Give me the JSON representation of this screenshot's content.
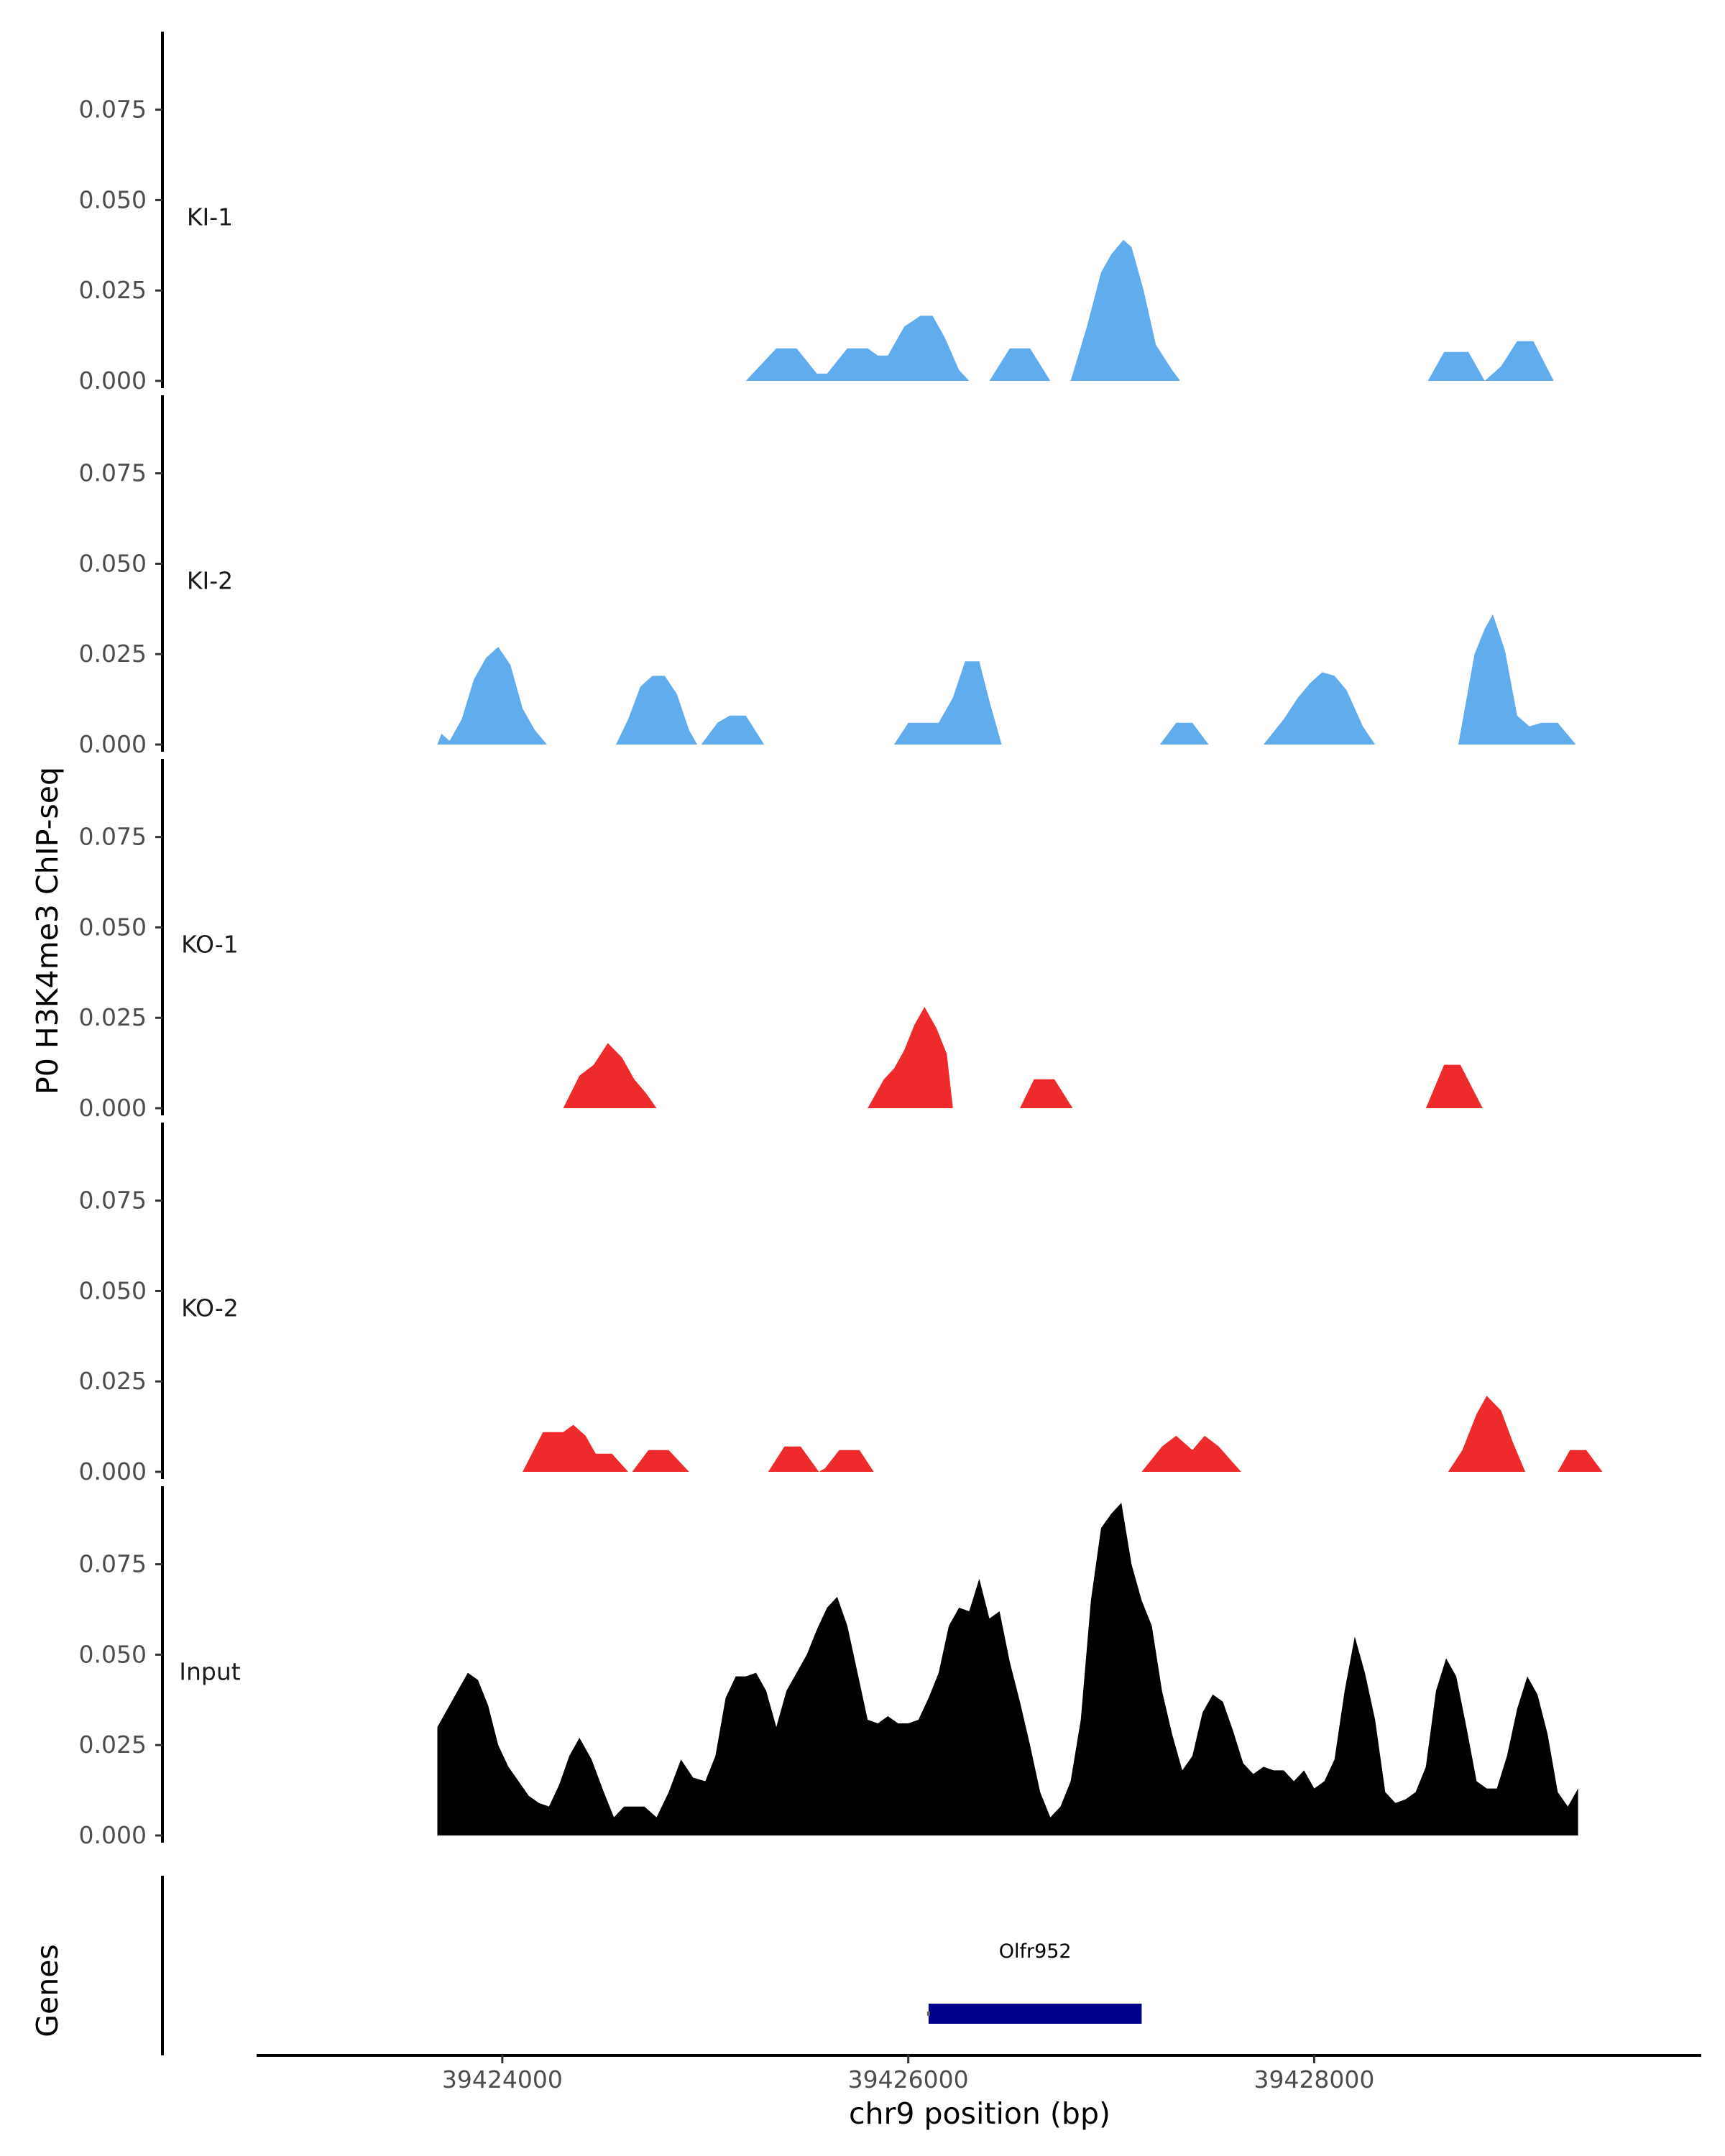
{
  "chart_data": {
    "type": "area",
    "ylabel": "P0 H3K4me3 ChIP-seq",
    "xlabel": "chr9 position (bp)",
    "genes_label": "Genes",
    "xlim": [
      39422800,
      39429900
    ],
    "ylim": [
      0,
      0.095
    ],
    "x_ticks": [
      39424000,
      39426000,
      39428000
    ],
    "x_tick_labels": [
      "39424000",
      "39426000",
      "39428000"
    ],
    "y_ticks": [
      0,
      0.025,
      0.05,
      0.075
    ],
    "y_tick_labels": [
      "0.000",
      "0.025",
      "0.050",
      "0.075"
    ],
    "tracks": [
      {
        "name": "KI-1",
        "color": "#61acec",
        "points": [
          [
            39425200,
            0
          ],
          [
            39425350,
            0.009
          ],
          [
            39425450,
            0.009
          ],
          [
            39425550,
            0.002
          ],
          [
            39425600,
            0.002
          ],
          [
            39425700,
            0.009
          ],
          [
            39425800,
            0.009
          ],
          [
            39425850,
            0.007
          ],
          [
            39425900,
            0.007
          ],
          [
            39425980,
            0.015
          ],
          [
            39426060,
            0.018
          ],
          [
            39426120,
            0.018
          ],
          [
            39426180,
            0.012
          ],
          [
            39426250,
            0.003
          ],
          [
            39426300,
            0
          ],
          [
            39426400,
            0
          ],
          [
            39426500,
            0.009
          ],
          [
            39426600,
            0.009
          ],
          [
            39426700,
            0
          ],
          [
            39426800,
            0
          ],
          [
            39426880,
            0.015
          ],
          [
            39426950,
            0.03
          ],
          [
            39427000,
            0.035
          ],
          [
            39427060,
            0.039
          ],
          [
            39427100,
            0.037
          ],
          [
            39427160,
            0.025
          ],
          [
            39427220,
            0.01
          ],
          [
            39427300,
            0.003
          ],
          [
            39427340,
            0
          ],
          [
            39428560,
            0
          ],
          [
            39428640,
            0.008
          ],
          [
            39428760,
            0.008
          ],
          [
            39428840,
            0
          ],
          [
            39428920,
            0.004
          ],
          [
            39429000,
            0.011
          ],
          [
            39429080,
            0.011
          ],
          [
            39429180,
            0
          ],
          [
            39429250,
            0
          ]
        ]
      },
      {
        "name": "KI-2",
        "color": "#61acec",
        "points": [
          [
            39423680,
            0
          ],
          [
            39423700,
            0.003
          ],
          [
            39423740,
            0.001
          ],
          [
            39423800,
            0.007
          ],
          [
            39423860,
            0.018
          ],
          [
            39423920,
            0.024
          ],
          [
            39423980,
            0.027
          ],
          [
            39424040,
            0.022
          ],
          [
            39424100,
            0.01
          ],
          [
            39424160,
            0.004
          ],
          [
            39424220,
            0
          ],
          [
            39424560,
            0
          ],
          [
            39424620,
            0.007
          ],
          [
            39424680,
            0.016
          ],
          [
            39424740,
            0.019
          ],
          [
            39424800,
            0.019
          ],
          [
            39424860,
            0.014
          ],
          [
            39424920,
            0.004
          ],
          [
            39424960,
            0
          ],
          [
            39424980,
            0
          ],
          [
            39425060,
            0.006
          ],
          [
            39425120,
            0.008
          ],
          [
            39425200,
            0.008
          ],
          [
            39425290,
            0
          ],
          [
            39425930,
            0
          ],
          [
            39426000,
            0.006
          ],
          [
            39426150,
            0.006
          ],
          [
            39426220,
            0.013
          ],
          [
            39426280,
            0.023
          ],
          [
            39426350,
            0.023
          ],
          [
            39426400,
            0.012
          ],
          [
            39426460,
            0
          ],
          [
            39427240,
            0
          ],
          [
            39427320,
            0.006
          ],
          [
            39427400,
            0.006
          ],
          [
            39427480,
            0
          ],
          [
            39427750,
            0
          ],
          [
            39427850,
            0.007
          ],
          [
            39427920,
            0.013
          ],
          [
            39427980,
            0.017
          ],
          [
            39428040,
            0.02
          ],
          [
            39428100,
            0.019
          ],
          [
            39428160,
            0.015
          ],
          [
            39428240,
            0.005
          ],
          [
            39428300,
            0
          ],
          [
            39428710,
            0
          ],
          [
            39428790,
            0.025
          ],
          [
            39428840,
            0.032
          ],
          [
            39428880,
            0.036
          ],
          [
            39428940,
            0.026
          ],
          [
            39429000,
            0.008
          ],
          [
            39429060,
            0.005
          ],
          [
            39429120,
            0.006
          ],
          [
            39429200,
            0.006
          ],
          [
            39429290,
            0
          ],
          [
            39429320,
            0
          ]
        ]
      },
      {
        "name": "KO-1",
        "color": "#ee2a2c",
        "points": [
          [
            39424300,
            0
          ],
          [
            39424380,
            0.009
          ],
          [
            39424450,
            0.012
          ],
          [
            39424520,
            0.018
          ],
          [
            39424590,
            0.014
          ],
          [
            39424650,
            0.008
          ],
          [
            39424710,
            0.004
          ],
          [
            39424760,
            0
          ],
          [
            39425800,
            0
          ],
          [
            39425880,
            0.008
          ],
          [
            39425930,
            0.011
          ],
          [
            39425980,
            0.016
          ],
          [
            39426030,
            0.023
          ],
          [
            39426080,
            0.028
          ],
          [
            39426140,
            0.022
          ],
          [
            39426190,
            0.015
          ],
          [
            39426220,
            0
          ],
          [
            39426550,
            0
          ],
          [
            39426620,
            0.008
          ],
          [
            39426720,
            0.008
          ],
          [
            39426810,
            0
          ],
          [
            39428550,
            0
          ],
          [
            39428640,
            0.012
          ],
          [
            39428720,
            0.012
          ],
          [
            39428830,
            0
          ],
          [
            39428860,
            0
          ]
        ]
      },
      {
        "name": "KO-2",
        "color": "#ee2a2c",
        "points": [
          [
            39424100,
            0
          ],
          [
            39424200,
            0.011
          ],
          [
            39424300,
            0.011
          ],
          [
            39424350,
            0.013
          ],
          [
            39424410,
            0.01
          ],
          [
            39424460,
            0.005
          ],
          [
            39424540,
            0.005
          ],
          [
            39424620,
            0
          ],
          [
            39424640,
            0
          ],
          [
            39424720,
            0.006
          ],
          [
            39424820,
            0.006
          ],
          [
            39424920,
            0
          ],
          [
            39425310,
            0
          ],
          [
            39425390,
            0.007
          ],
          [
            39425470,
            0.007
          ],
          [
            39425560,
            0
          ],
          [
            39425590,
            0.001
          ],
          [
            39425660,
            0.006
          ],
          [
            39425760,
            0.006
          ],
          [
            39425830,
            0
          ],
          [
            39427150,
            0
          ],
          [
            39427250,
            0.007
          ],
          [
            39427320,
            0.01
          ],
          [
            39427400,
            0.006
          ],
          [
            39427460,
            0.01
          ],
          [
            39427530,
            0.007
          ],
          [
            39427640,
            0
          ],
          [
            39428660,
            0
          ],
          [
            39428730,
            0.006
          ],
          [
            39428800,
            0.016
          ],
          [
            39428850,
            0.021
          ],
          [
            39428920,
            0.017
          ],
          [
            39428980,
            0.008
          ],
          [
            39429040,
            0
          ],
          [
            39429200,
            0
          ],
          [
            39429260,
            0.006
          ],
          [
            39429340,
            0.006
          ],
          [
            39429420,
            0
          ],
          [
            39429460,
            0
          ]
        ]
      },
      {
        "name": "Input",
        "color": "#000000",
        "points": [
          [
            39423680,
            0.03
          ],
          [
            39423730,
            0.035
          ],
          [
            39423780,
            0.04
          ],
          [
            39423830,
            0.045
          ],
          [
            39423880,
            0.043
          ],
          [
            39423930,
            0.036
          ],
          [
            39423980,
            0.025
          ],
          [
            39424030,
            0.019
          ],
          [
            39424080,
            0.015
          ],
          [
            39424130,
            0.011
          ],
          [
            39424180,
            0.009
          ],
          [
            39424230,
            0.008
          ],
          [
            39424280,
            0.014
          ],
          [
            39424330,
            0.022
          ],
          [
            39424380,
            0.027
          ],
          [
            39424440,
            0.021
          ],
          [
            39424500,
            0.012
          ],
          [
            39424550,
            0.005
          ],
          [
            39424600,
            0.008
          ],
          [
            39424650,
            0.008
          ],
          [
            39424700,
            0.008
          ],
          [
            39424760,
            0.005
          ],
          [
            39424820,
            0.012
          ],
          [
            39424880,
            0.021
          ],
          [
            39424940,
            0.016
          ],
          [
            39425000,
            0.015
          ],
          [
            39425050,
            0.022
          ],
          [
            39425100,
            0.038
          ],
          [
            39425150,
            0.044
          ],
          [
            39425200,
            0.044
          ],
          [
            39425250,
            0.045
          ],
          [
            39425300,
            0.04
          ],
          [
            39425350,
            0.03
          ],
          [
            39425400,
            0.04
          ],
          [
            39425450,
            0.045
          ],
          [
            39425500,
            0.05
          ],
          [
            39425550,
            0.057
          ],
          [
            39425600,
            0.063
          ],
          [
            39425650,
            0.066
          ],
          [
            39425700,
            0.058
          ],
          [
            39425750,
            0.045
          ],
          [
            39425800,
            0.032
          ],
          [
            39425850,
            0.031
          ],
          [
            39425900,
            0.033
          ],
          [
            39425950,
            0.031
          ],
          [
            39426000,
            0.031
          ],
          [
            39426050,
            0.032
          ],
          [
            39426100,
            0.038
          ],
          [
            39426150,
            0.045
          ],
          [
            39426200,
            0.058
          ],
          [
            39426250,
            0.063
          ],
          [
            39426300,
            0.062
          ],
          [
            39426350,
            0.071
          ],
          [
            39426400,
            0.06
          ],
          [
            39426450,
            0.062
          ],
          [
            39426500,
            0.048
          ],
          [
            39426550,
            0.037
          ],
          [
            39426600,
            0.025
          ],
          [
            39426650,
            0.012
          ],
          [
            39426700,
            0.005
          ],
          [
            39426750,
            0.008
          ],
          [
            39426800,
            0.015
          ],
          [
            39426850,
            0.032
          ],
          [
            39426900,
            0.065
          ],
          [
            39426950,
            0.085
          ],
          [
            39427000,
            0.089
          ],
          [
            39427050,
            0.092
          ],
          [
            39427100,
            0.075
          ],
          [
            39427150,
            0.065
          ],
          [
            39427200,
            0.058
          ],
          [
            39427250,
            0.04
          ],
          [
            39427300,
            0.028
          ],
          [
            39427350,
            0.018
          ],
          [
            39427400,
            0.022
          ],
          [
            39427450,
            0.034
          ],
          [
            39427500,
            0.039
          ],
          [
            39427550,
            0.037
          ],
          [
            39427600,
            0.029
          ],
          [
            39427650,
            0.02
          ],
          [
            39427700,
            0.017
          ],
          [
            39427750,
            0.019
          ],
          [
            39427800,
            0.018
          ],
          [
            39427850,
            0.018
          ],
          [
            39427900,
            0.015
          ],
          [
            39427950,
            0.018
          ],
          [
            39428000,
            0.013
          ],
          [
            39428050,
            0.015
          ],
          [
            39428100,
            0.021
          ],
          [
            39428150,
            0.04
          ],
          [
            39428200,
            0.055
          ],
          [
            39428250,
            0.045
          ],
          [
            39428300,
            0.032
          ],
          [
            39428350,
            0.012
          ],
          [
            39428400,
            0.009
          ],
          [
            39428450,
            0.01
          ],
          [
            39428500,
            0.012
          ],
          [
            39428550,
            0.019
          ],
          [
            39428600,
            0.04
          ],
          [
            39428650,
            0.049
          ],
          [
            39428700,
            0.044
          ],
          [
            39428750,
            0.03
          ],
          [
            39428800,
            0.015
          ],
          [
            39428850,
            0.013
          ],
          [
            39428900,
            0.013
          ],
          [
            39428950,
            0.022
          ],
          [
            39429000,
            0.035
          ],
          [
            39429050,
            0.044
          ],
          [
            39429100,
            0.039
          ],
          [
            39429150,
            0.028
          ],
          [
            39429200,
            0.012
          ],
          [
            39429250,
            0.008
          ],
          [
            39429300,
            0.013
          ]
        ]
      }
    ],
    "genes": [
      {
        "name": "Olfr952",
        "start": 39426100,
        "end": 39427150,
        "strand": "+",
        "color": "#00008b"
      }
    ]
  }
}
